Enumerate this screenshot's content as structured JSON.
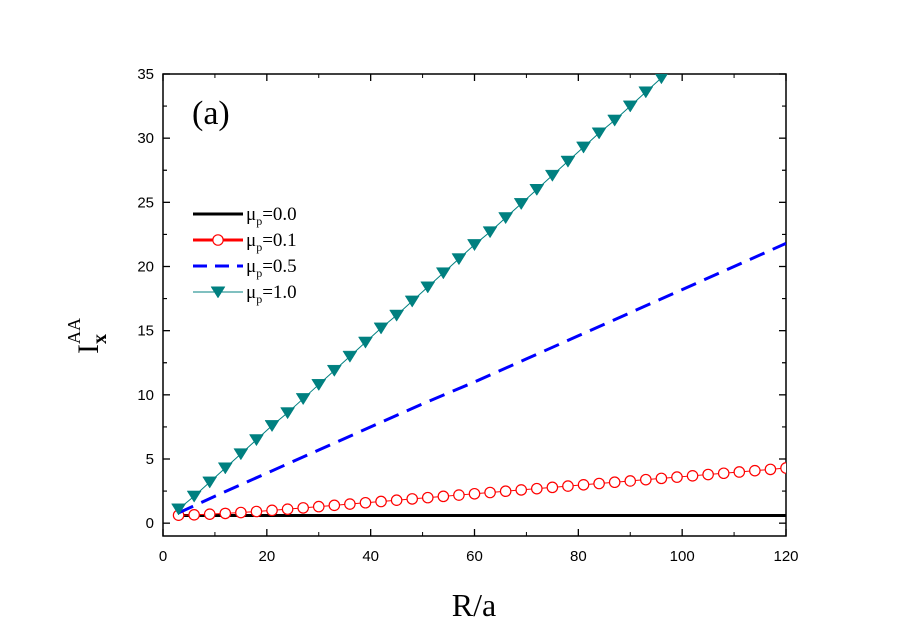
{
  "chart_data": {
    "type": "line",
    "panel_label": "(a)",
    "xlabel": "R/a",
    "ylabel": {
      "main": "I",
      "subscript": "x",
      "superscript": "AA"
    },
    "xlim": [
      0,
      120
    ],
    "ylim": [
      -1,
      35
    ],
    "xticks": [
      0,
      20,
      40,
      60,
      80,
      100,
      120
    ],
    "yticks": [
      0,
      5,
      10,
      15,
      20,
      25,
      30,
      35
    ],
    "grid": false,
    "legend_position": "left-middle",
    "series": [
      {
        "name": {
          "symbol": "μ",
          "sub": "p",
          "text": "=0.0"
        },
        "color": "#000000",
        "style": "solid",
        "marker": "none",
        "x": [
          3,
          120
        ],
        "y": [
          0.6,
          0.6
        ]
      },
      {
        "name": {
          "symbol": "μ",
          "sub": "p",
          "text": "=0.1"
        },
        "color": "#ff0000",
        "style": "solid",
        "marker": "open-circle",
        "x": [
          3,
          6,
          9,
          12,
          15,
          18,
          21,
          24,
          27,
          30,
          33,
          36,
          39,
          42,
          45,
          48,
          51,
          54,
          57,
          60,
          63,
          66,
          69,
          72,
          75,
          78,
          81,
          84,
          87,
          90,
          93,
          96,
          99,
          102,
          105,
          108,
          111,
          114,
          117,
          120
        ],
        "y": [
          0.62,
          0.65,
          0.7,
          0.76,
          0.83,
          0.91,
          1.0,
          1.09,
          1.19,
          1.29,
          1.39,
          1.49,
          1.59,
          1.69,
          1.79,
          1.89,
          1.99,
          2.09,
          2.19,
          2.29,
          2.39,
          2.49,
          2.59,
          2.69,
          2.79,
          2.89,
          2.99,
          3.09,
          3.19,
          3.29,
          3.39,
          3.49,
          3.59,
          3.69,
          3.79,
          3.89,
          3.99,
          4.09,
          4.19,
          4.3
        ]
      },
      {
        "name": {
          "symbol": "μ",
          "sub": "p",
          "text": "=0.5"
        },
        "color": "#0000ff",
        "style": "dashed",
        "marker": "none",
        "x": [
          3,
          10,
          20,
          30,
          40,
          50,
          60,
          70,
          80,
          90,
          100,
          110,
          120
        ],
        "y": [
          0.8,
          2.1,
          3.9,
          5.7,
          7.5,
          9.3,
          11.0,
          12.8,
          14.6,
          16.4,
          18.2,
          20.0,
          21.8
        ]
      },
      {
        "name": {
          "symbol": "μ",
          "sub": "p",
          "text": "=1.0"
        },
        "color": "#008080",
        "style": "solid",
        "marker": "filled-down-triangle",
        "x": [
          3,
          6,
          9,
          12,
          15,
          18,
          21,
          24,
          27,
          30,
          33,
          36,
          39,
          42,
          45,
          48,
          51,
          54,
          57,
          60,
          63,
          66,
          69,
          72,
          75,
          78,
          81,
          84,
          87,
          90,
          93,
          96
        ],
        "y": [
          1.1,
          2.1,
          3.2,
          4.3,
          5.4,
          6.5,
          7.6,
          8.6,
          9.7,
          10.8,
          11.9,
          13.0,
          14.1,
          15.2,
          16.2,
          17.3,
          18.4,
          19.5,
          20.6,
          21.7,
          22.7,
          23.8,
          24.9,
          26.0,
          27.1,
          28.2,
          29.3,
          30.4,
          31.4,
          32.5,
          33.6,
          34.7
        ]
      }
    ]
  }
}
